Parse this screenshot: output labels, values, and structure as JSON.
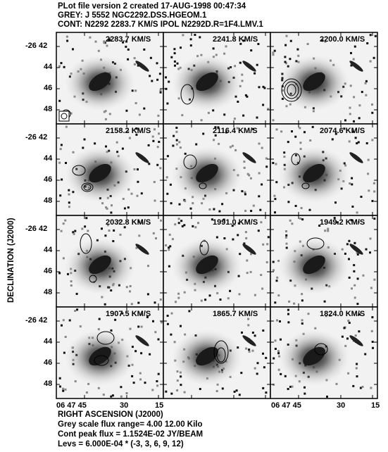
{
  "header": {
    "line1": "PLot file version 2  created 17-AUG-1998 00:47:34",
    "line2": "GREY: J 5552  NGC2292.DSS.HGEOM.1",
    "line3": "CONT: N2292  2283.7 KM/S  IPOL  N2292D.R=1F4.LMV.1"
  },
  "axes": {
    "ylabel": "DECLINATION (J2000)",
    "xlabel": "RIGHT ASCENSION (J2000)",
    "y_ticks": [
      "-26 42",
      "44",
      "46",
      "48"
    ],
    "x_ticks": [
      "06 47 45",
      "30",
      "15"
    ]
  },
  "panels": [
    {
      "velocity": "2283.7 KM/S"
    },
    {
      "velocity": "2241.8 KM/S"
    },
    {
      "velocity": "2200.0 KM/S"
    },
    {
      "velocity": "2158.2 KM/S"
    },
    {
      "velocity": "2116.4 KM/S"
    },
    {
      "velocity": "2074.6 KM/S"
    },
    {
      "velocity": "2032.8 KM/S"
    },
    {
      "velocity": "1991.0 KM/S"
    },
    {
      "velocity": "1949.2 KM/S"
    },
    {
      "velocity": "1907.5 KM/S"
    },
    {
      "velocity": "1865.7 KM/S"
    },
    {
      "velocity": "1824.0 KM/S"
    }
  ],
  "footer": {
    "line1": "Grey scale flux range= 4.00 12.00 Kilo",
    "line2": "Cont peak flux =  1.1524E-02 JY/BEAM",
    "line3": "Levs = 6.000E-04 * (-3, 3, 6, 9, 12)"
  },
  "colors": {
    "frame": "#000000",
    "background": "#ffffff",
    "galaxy": "#1a1a1a"
  }
}
